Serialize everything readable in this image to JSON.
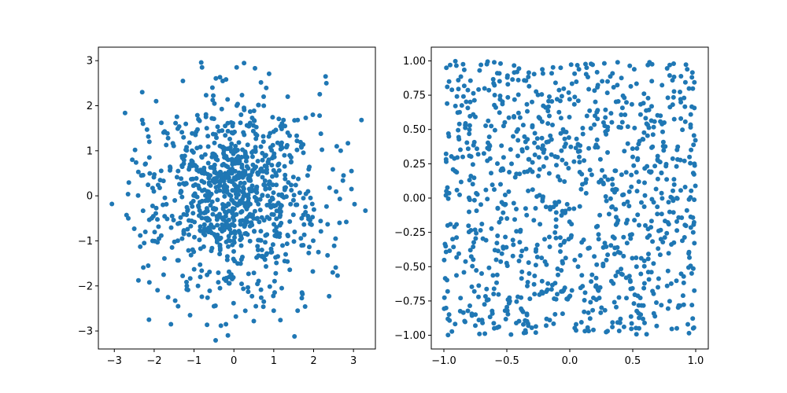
{
  "chart_data": [
    {
      "type": "scatter",
      "title": "",
      "xlabel": "",
      "ylabel": "",
      "xlim": [
        -3.4,
        3.55
      ],
      "ylim": [
        -3.4,
        3.3
      ],
      "xticks": [
        -3,
        -2,
        -1,
        0,
        1,
        2,
        3
      ],
      "yticks": [
        -3,
        -2,
        -1,
        0,
        1,
        2,
        3
      ],
      "xtick_labels": [
        "−3",
        "−2",
        "−1",
        "0",
        "1",
        "2",
        "3"
      ],
      "ytick_labels": [
        "−3",
        "−2",
        "−1",
        "0",
        "1",
        "2",
        "3"
      ],
      "grid": false,
      "legend": "none",
      "color": "#1f77b4",
      "distribution": "standard normal in x and y",
      "point_count": 1000,
      "series": [
        {
          "name": "",
          "points": [
            [
              -0.82,
              2.96
            ],
            [
              -0.8,
              2.85
            ],
            [
              0.07,
              2.85
            ],
            [
              0.53,
              2.83
            ],
            [
              2.3,
              2.65
            ],
            [
              2.32,
              2.5
            ],
            [
              -1.28,
              2.55
            ],
            [
              -2.3,
              2.3
            ],
            [
              -1.95,
              2.1
            ],
            [
              -0.28,
              2.55
            ],
            [
              3.2,
              1.68
            ],
            [
              -2.3,
              1.68
            ],
            [
              -2.28,
              1.6
            ],
            [
              -1.82,
              1.62
            ],
            [
              1.98,
              1.8
            ],
            [
              2.15,
              1.78
            ],
            [
              -3.06,
              -0.18
            ],
            [
              -2.65,
              -0.5
            ],
            [
              -2.5,
              -0.73
            ],
            [
              -2.35,
              -0.88
            ],
            [
              3.3,
              -0.33
            ],
            [
              2.82,
              -0.58
            ],
            [
              2.65,
              -0.6
            ],
            [
              -2.25,
              -1.05
            ],
            [
              -2.35,
              -1.13
            ],
            [
              -2.15,
              -1.55
            ],
            [
              -2.12,
              -1.92
            ],
            [
              -1.65,
              -2.25
            ],
            [
              -1.4,
              -2.45
            ],
            [
              -2.13,
              -2.75
            ],
            [
              -1.58,
              -2.85
            ],
            [
              -1.1,
              -2.65
            ],
            [
              0.05,
              -2.68
            ],
            [
              -0.2,
              -2.85
            ],
            [
              -0.15,
              -3.1
            ],
            [
              1.52,
              -3.12
            ],
            [
              0.5,
              -2.78
            ],
            [
              1.0,
              -2.55
            ],
            [
              1.6,
              -2.55
            ],
            [
              2.48,
              -1.7
            ],
            [
              2.6,
              -1.77
            ],
            [
              1.98,
              -1.68
            ],
            [
              2.12,
              -1.25
            ],
            [
              2.55,
              -0.95
            ],
            [
              2.95,
              0.15
            ],
            [
              2.95,
              0.55
            ],
            [
              2.75,
              0.45
            ],
            [
              2.58,
              1.1
            ],
            [
              2.68,
              1.0
            ],
            [
              -2.12,
              1.2
            ],
            [
              -1.65,
              1.28
            ],
            [
              -2.48,
              1.02
            ],
            [
              -2.55,
              0.8
            ],
            [
              -2.12,
              0.85
            ],
            [
              1.35,
              2.2
            ],
            [
              1.35,
              1.4
            ],
            [
              1.6,
              1.68
            ],
            [
              0.75,
              2.0
            ],
            [
              0.18,
              1.8
            ],
            [
              -0.7,
              1.75
            ],
            [
              -0.22,
              1.55
            ],
            [
              1.72,
              -2.18
            ],
            [
              1.2,
              -2.05
            ],
            [
              -0.5,
              -2.45
            ],
            [
              -0.35,
              -2.05
            ],
            [
              -1.18,
              -2.0
            ],
            [
              -0.9,
              -2.0
            ],
            [
              0.75,
              -2.35
            ],
            [
              0.55,
              -2.45
            ],
            [
              1.05,
              -1.72
            ],
            [
              -1.85,
              0.35
            ],
            [
              -1.78,
              -0.2
            ],
            [
              -1.55,
              -0.45
            ],
            [
              -1.4,
              0.55
            ],
            [
              -1.3,
              -0.95
            ],
            [
              -1.05,
              1.0
            ],
            [
              1.7,
              -0.5
            ],
            [
              1.85,
              0.45
            ],
            [
              1.7,
              -1.1
            ],
            [
              1.3,
              -1.3
            ],
            [
              1.4,
              0.9
            ],
            [
              0.95,
              -1.25
            ]
          ]
        }
      ]
    },
    {
      "type": "scatter",
      "title": "",
      "xlabel": "",
      "ylabel": "",
      "xlim": [
        -1.1,
        1.1
      ],
      "ylim": [
        -1.1,
        1.1
      ],
      "xticks": [
        -1.0,
        -0.5,
        0.0,
        0.5,
        1.0
      ],
      "yticks": [
        -1.0,
        -0.75,
        -0.5,
        -0.25,
        0.0,
        0.25,
        0.5,
        0.75,
        1.0
      ],
      "xtick_labels": [
        "−1.0",
        "−0.5",
        "0.0",
        "0.5",
        "1.0"
      ],
      "ytick_labels": [
        "−1.00",
        "−0.75",
        "−0.50",
        "−0.25",
        "0.00",
        "0.25",
        "0.50",
        "0.75",
        "1.00"
      ],
      "grid": false,
      "legend": "none",
      "color": "#1f77b4",
      "distribution": "uniform on [-1, 1] in x and y",
      "point_count": 1000,
      "series": [
        {
          "name": "",
          "points": [
            [
              -0.98,
              0.95
            ],
            [
              -0.95,
              0.97
            ],
            [
              -0.6,
              0.99
            ],
            [
              -0.55,
              0.98
            ],
            [
              0.38,
              0.99
            ],
            [
              0.62,
              0.97
            ],
            [
              0.97,
              0.88
            ],
            [
              0.99,
              0.25
            ],
            [
              0.98,
              -0.25
            ],
            [
              0.97,
              -0.78
            ],
            [
              0.98,
              -0.95
            ],
            [
              0.85,
              -0.95
            ],
            [
              0.55,
              -0.95
            ],
            [
              0.12,
              -0.97
            ],
            [
              -0.35,
              -0.98
            ],
            [
              -0.75,
              -0.93
            ],
            [
              -0.97,
              -0.68
            ],
            [
              -0.98,
              0.05
            ],
            [
              -0.97,
              -0.2
            ],
            [
              -0.96,
              0.45
            ],
            [
              -0.6,
              -0.95
            ],
            [
              0.05,
              -0.92
            ],
            [
              0.3,
              -0.97
            ],
            [
              -0.3,
              0.7
            ],
            [
              0.2,
              0.6
            ],
            [
              0.5,
              0.3
            ],
            [
              -0.55,
              0.1
            ],
            [
              0.1,
              0.1
            ],
            [
              -0.2,
              -0.3
            ],
            [
              0.4,
              -0.4
            ],
            [
              -0.7,
              -0.55
            ],
            [
              0.7,
              -0.65
            ],
            [
              0.75,
              0.55
            ],
            [
              -0.85,
              0.3
            ],
            [
              0.85,
              0.0
            ],
            [
              -0.1,
              -0.7
            ],
            [
              0.3,
              0.85
            ],
            [
              -0.45,
              0.45
            ],
            [
              0.6,
              -0.2
            ],
            [
              -0.8,
              -0.1
            ]
          ]
        }
      ]
    }
  ]
}
